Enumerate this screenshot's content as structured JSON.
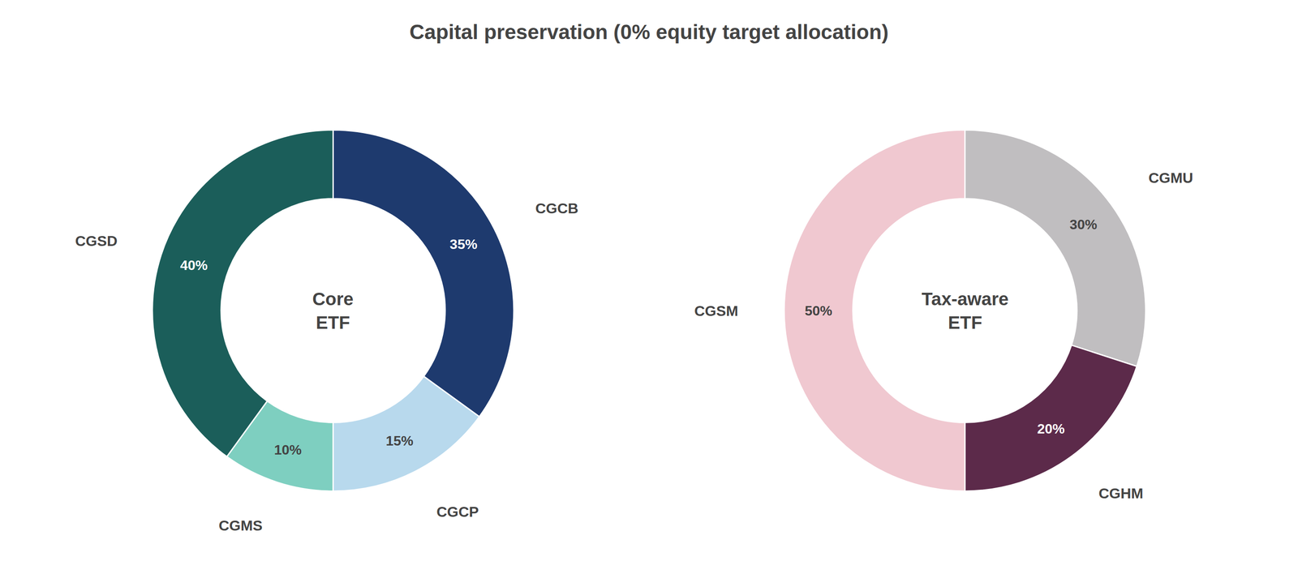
{
  "title": "Capital preservation (0% equity target allocation)",
  "chart_data": [
    {
      "type": "donut",
      "categories": [
        "CGCB",
        "CGCP",
        "CGMS",
        "CGSD"
      ],
      "values": [
        35,
        15,
        10,
        40
      ],
      "value_labels": [
        "35%",
        "15%",
        "10%",
        "40%"
      ],
      "colors": [
        "#1e3a6e",
        "#b8d9ed",
        "#7ecfc0",
        "#1b5e5a"
      ],
      "data_labels": true,
      "annotations": [
        "Core\nETF"
      ]
    },
    {
      "type": "donut",
      "categories": [
        "CGMU",
        "CGHM",
        "CGSM"
      ],
      "values": [
        30,
        20,
        50
      ],
      "value_labels": [
        "30%",
        "20%",
        "50%"
      ],
      "colors": [
        "#c0bec0",
        "#5c2a4a",
        "#f0c8d0"
      ],
      "data_labels": true,
      "annotations": [
        "Tax-aware\nETF"
      ]
    }
  ]
}
